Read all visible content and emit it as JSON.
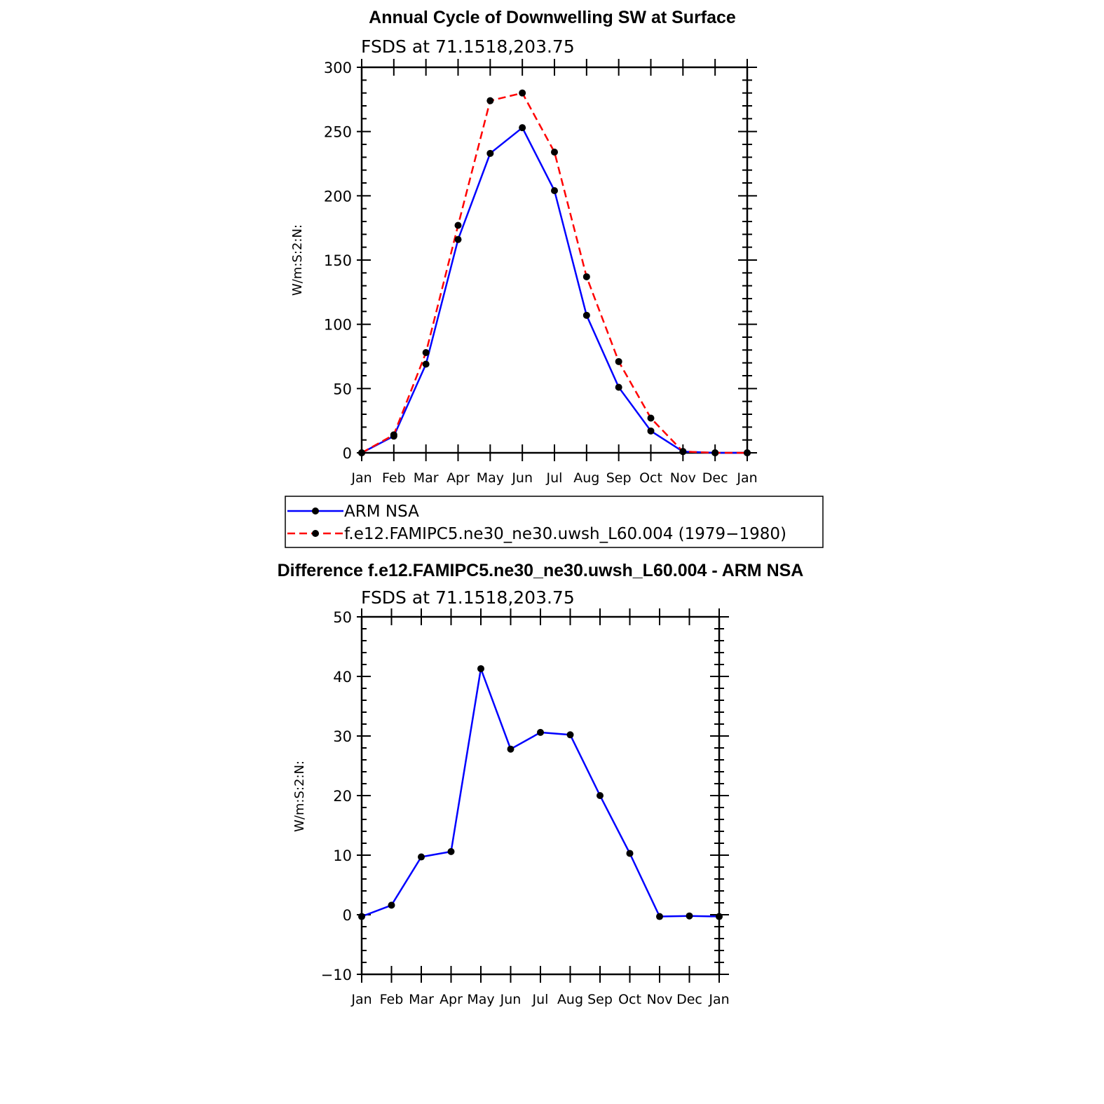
{
  "chart_data": [
    {
      "type": "line",
      "title": "Annual Cycle of Downwelling SW at Surface",
      "subtitle": "FSDS at 71.1518,203.75",
      "ylabel": "W/m:S:2:N:",
      "xlabel": "",
      "categories": [
        "Jan",
        "Feb",
        "Mar",
        "Apr",
        "May",
        "Jun",
        "Jul",
        "Aug",
        "Sep",
        "Oct",
        "Nov",
        "Dec",
        "Jan"
      ],
      "ylim": [
        0,
        300
      ],
      "yticks": [
        0,
        50,
        100,
        150,
        200,
        250,
        300
      ],
      "grid": false,
      "series": [
        {
          "name": "ARM NSA",
          "color": "#0000ff",
          "dash": "solid",
          "values": [
            0,
            13,
            69,
            166,
            233,
            253,
            204,
            107,
            51,
            17,
            1,
            0,
            0
          ]
        },
        {
          "name": "f.e12.FAMIPC5.ne30_ne30.uwsh_L60.004 (1979−1980)",
          "color": "#ff0000",
          "dash": "dashed",
          "values": [
            0,
            14,
            78,
            177,
            274,
            280,
            234,
            137,
            71,
            27,
            1,
            0,
            0
          ]
        }
      ],
      "legend": "bottom"
    },
    {
      "type": "line",
      "title": "Difference f.e12.FAMIPC5.ne30_ne30.uwsh_L60.004 - ARM NSA",
      "subtitle": "FSDS at 71.1518,203.75",
      "ylabel": "W/m:S:2:N:",
      "xlabel": "",
      "categories": [
        "Jan",
        "Feb",
        "Mar",
        "Apr",
        "May",
        "Jun",
        "Jul",
        "Aug",
        "Sep",
        "Oct",
        "Nov",
        "Dec",
        "Jan"
      ],
      "ylim": [
        -10,
        50
      ],
      "yticks": [
        -10,
        0,
        10,
        20,
        30,
        40,
        50
      ],
      "ytick_labels": [
        "−10",
        "0",
        "10",
        "20",
        "30",
        "40",
        "50"
      ],
      "grid": false,
      "series": [
        {
          "color": "#0000ff",
          "dash": "solid",
          "values": [
            -0.3,
            1.6,
            9.7,
            10.6,
            41.3,
            27.8,
            30.6,
            30.2,
            20.0,
            10.3,
            -0.3,
            -0.2,
            -0.3
          ]
        }
      ]
    }
  ]
}
